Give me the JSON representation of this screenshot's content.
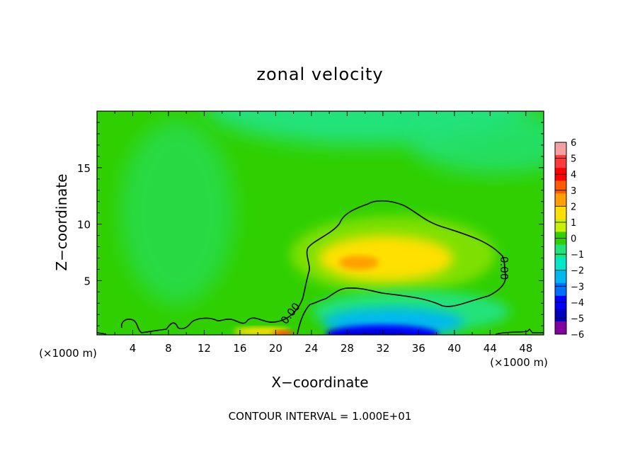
{
  "chart_data": {
    "type": "heatmap",
    "title": "zonal velocity",
    "xlabel": "X−coordinate",
    "ylabel": "Z−coordinate",
    "x_unit_left": "(×1000 m)",
    "x_unit_right": "(×1000 m)",
    "footer": "CONTOUR INTERVAL = 1.000E+01",
    "xlim": [
      0,
      50
    ],
    "ylim": [
      0.2,
      20
    ],
    "x_ticks": [
      4,
      8,
      12,
      16,
      20,
      24,
      28,
      32,
      36,
      40,
      44,
      48
    ],
    "y_ticks": [
      5,
      10,
      15
    ],
    "contour_level": 0,
    "contour_labels": [
      "0.00",
      "0.00"
    ],
    "grid": false,
    "colorbar": {
      "ticks": [
        "6",
        "5",
        "4",
        "3",
        "2",
        "1",
        "0",
        "−1",
        "−2",
        "−3",
        "−4",
        "−5",
        "−6"
      ],
      "colors": [
        "#f4a0a0",
        "#ff3a3a",
        "#ff0000",
        "#ff5a00",
        "#ffa000",
        "#ffe000",
        "#c8f000",
        "#30d000",
        "#24e27a",
        "#00e8c8",
        "#00b8f0",
        "#0070ff",
        "#0000ff",
        "#0000c0",
        "#8000a0"
      ],
      "range": [
        -6,
        6
      ]
    },
    "field_features": [
      {
        "x": 29.5,
        "z": 6.4,
        "value": 3.0,
        "note": "jet maximum"
      },
      {
        "x": 33,
        "z": 7,
        "value": 2.0
      },
      {
        "x": 31,
        "z": 0.5,
        "value": -5.5,
        "note": "near-surface minimum"
      },
      {
        "x": 20,
        "z": 0.4,
        "value": 3.0
      },
      {
        "x": 27,
        "z": 19,
        "value": -1.5
      },
      {
        "x": 45,
        "z": 17,
        "value": -1.0
      },
      {
        "x": 4,
        "z": 10,
        "value": 0.3
      }
    ]
  }
}
